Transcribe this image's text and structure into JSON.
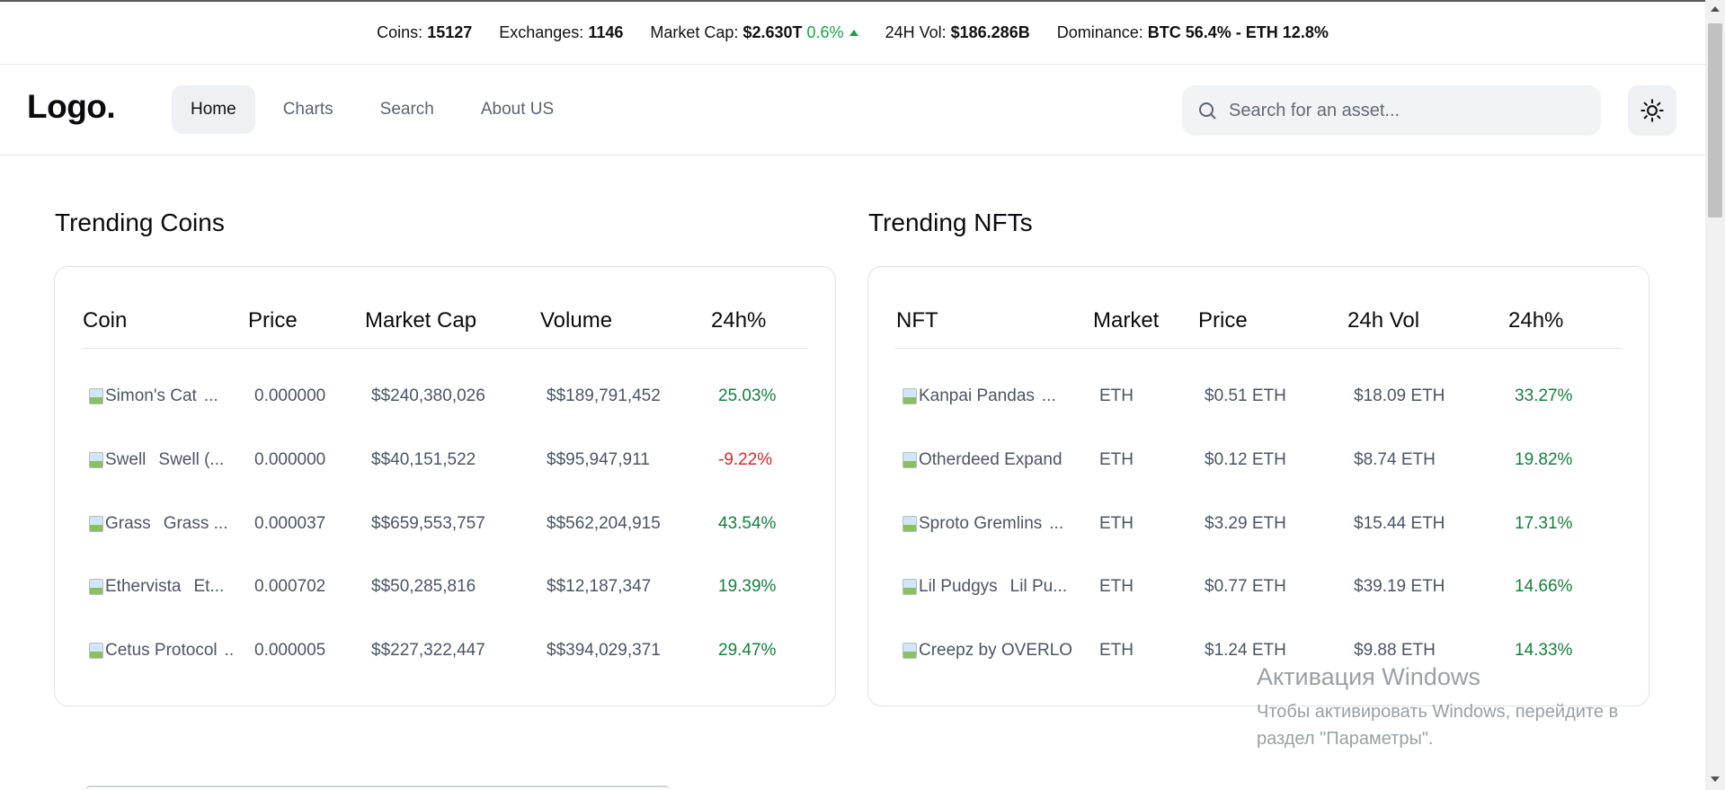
{
  "stats": {
    "coins_label": "Coins:",
    "coins_value": "15127",
    "exchanges_label": "Exchanges:",
    "exchanges_value": "1146",
    "marketcap_label": "Market Cap:",
    "marketcap_value": "$2.630T",
    "marketcap_change": "0.6%",
    "vol_label": "24H Vol:",
    "vol_value": "$186.286B",
    "dominance_label": "Dominance:",
    "dominance_value": "BTC 56.4% - ETH 12.8%"
  },
  "nav": {
    "logo": "Logo.",
    "links": [
      "Home",
      "Charts",
      "Search",
      "About US"
    ],
    "search_placeholder": "Search for an asset...",
    "theme_icon": "sun-icon"
  },
  "coins": {
    "title": "Trending Coins",
    "headers": [
      "Coin",
      "Price",
      "Market Cap",
      "Volume",
      "24h%"
    ],
    "rows": [
      {
        "alt": "Simon's Cat",
        "sym": "",
        "price": "0.000000",
        "mcap": "$$240,380,026",
        "vol": "$$189,791,452",
        "change": "25.03%",
        "dir": "pos"
      },
      {
        "alt": "Swell",
        "sym": "Swell (...",
        "price": "0.000000",
        "mcap": "$$40,151,522",
        "vol": "$$95,947,911",
        "change": "-9.22%",
        "dir": "neg"
      },
      {
        "alt": "Grass",
        "sym": "Grass ...",
        "price": "0.000037",
        "mcap": "$$659,553,757",
        "vol": "$$562,204,915",
        "change": "43.54%",
        "dir": "pos"
      },
      {
        "alt": "Ethervista",
        "sym": "Et...",
        "price": "0.000702",
        "mcap": "$$50,285,816",
        "vol": "$$12,187,347",
        "change": "19.39%",
        "dir": "pos"
      },
      {
        "alt": "Cetus Protocol",
        "sym": "",
        "price": "0.000005",
        "mcap": "$$227,322,447",
        "vol": "$$394,029,371",
        "change": "29.47%",
        "dir": "pos"
      }
    ]
  },
  "nfts": {
    "title": "Trending NFTs",
    "headers": [
      "NFT",
      "Market",
      "Price",
      "24h Vol",
      "24h%"
    ],
    "rows": [
      {
        "alt": "Kanpai Pandas",
        "market": "ETH",
        "price": "$0.51 ETH",
        "vol": "$18.09 ETH",
        "change": "33.27%"
      },
      {
        "alt": "Otherdeed Expand",
        "market": "ETH",
        "price": "$0.12 ETH",
        "vol": "$8.74 ETH",
        "change": "19.82%"
      },
      {
        "alt": "Sproto Gremlins",
        "market": "ETH",
        "price": "$3.29 ETH",
        "vol": "$15.44 ETH",
        "change": "17.31%"
      },
      {
        "alt": "Lil Pudgys",
        "sym": "Lil Pu...",
        "market": "ETH",
        "price": "$0.77 ETH",
        "vol": "$39.19 ETH",
        "change": "14.66%"
      },
      {
        "alt": "Creepz by OVERLO",
        "market": "ETH",
        "price": "$1.24 ETH",
        "vol": "$9.88 ETH",
        "change": "14.33%"
      }
    ]
  },
  "watermark": {
    "line1": "Активация Windows",
    "line2": "Чтобы активировать Windows, перейдите в",
    "line3": "раздел \"Параметры\"."
  },
  "colors": {
    "positive": "#15803d",
    "negative": "#dc2626",
    "accent_green": "#16a34a"
  }
}
